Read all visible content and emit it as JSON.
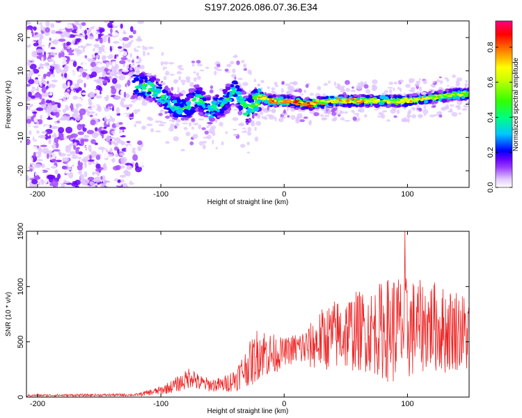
{
  "title": "S197.2026.086.07.36.E34",
  "chart_data": [
    {
      "type": "heatmap",
      "xlabel": "Height of straight line (km)",
      "ylabel": "Frequency (Hz)",
      "xlim": [
        -209,
        150
      ],
      "ylim": [
        -25,
        25
      ],
      "xticks": [
        -200,
        -100,
        0,
        100
      ],
      "xtick_labels": [
        "-200",
        "-100",
        "0",
        "100"
      ],
      "yticks": [
        20,
        10,
        0,
        -10,
        -20
      ],
      "ytick_labels": [
        "20",
        "10",
        "0",
        "-10",
        "-20"
      ],
      "colorbar": {
        "label": "Normalized spectral amplitude",
        "range": [
          0,
          0.95
        ],
        "ticks": [
          0,
          0.2,
          0.4,
          0.6,
          0.8
        ],
        "tick_labels": [
          "0.0",
          "0.2",
          "0.4",
          "0.6",
          "0.8"
        ],
        "colors": [
          "#ffffff",
          "#e0c8ff",
          "#9b3cff",
          "#6600ff",
          "#0000ff",
          "#00c8ff",
          "#00ff80",
          "#80ff00",
          "#ffff00",
          "#ff8000",
          "#ff0000",
          "#ff0080"
        ]
      },
      "ridge": {
        "x": [
          -120,
          -110,
          -100,
          -90,
          -80,
          -70,
          -60,
          -50,
          -40,
          -30,
          -20,
          -10,
          0,
          20,
          40,
          60,
          80,
          100,
          120,
          140,
          150
        ],
        "y": [
          6,
          5,
          3,
          -1,
          -1,
          2,
          -2,
          0,
          4,
          -2,
          2,
          1,
          1,
          0,
          1,
          1,
          1,
          1,
          2,
          3,
          3
        ],
        "peak": [
          0.45,
          0.5,
          0.55,
          0.4,
          0.45,
          0.5,
          0.45,
          0.4,
          0.45,
          0.55,
          0.85,
          0.85,
          0.9,
          0.95,
          0.8,
          0.85,
          0.7,
          0.8,
          0.7,
          0.75,
          0.6
        ]
      },
      "noise_region_x": [
        -209,
        -120
      ]
    },
    {
      "type": "line",
      "xlabel": "Height of straight line (km)",
      "ylabel": "SNR (10 * v/v)",
      "xlim": [
        -209,
        150
      ],
      "ylim": [
        0,
        1500
      ],
      "xticks": [
        -200,
        -100,
        0,
        100
      ],
      "xtick_labels": [
        "-200",
        "-100",
        "0",
        "100"
      ],
      "yticks": [
        0,
        500,
        1000,
        1500
      ],
      "ytick_labels": [
        "0",
        "500",
        "1000",
        "1500"
      ],
      "series": [
        {
          "name": "SNR",
          "color": "#ee2222",
          "envelope_x": [
            -209,
            -120,
            -100,
            -90,
            -80,
            -75,
            -70,
            -60,
            -50,
            -40,
            -30,
            -25,
            -20,
            -10,
            0,
            10,
            20,
            30,
            40,
            50,
            60,
            70,
            80,
            90,
            100,
            110,
            120,
            130,
            140,
            150
          ],
          "envelope_mean": [
            15,
            20,
            60,
            100,
            150,
            200,
            130,
            110,
            110,
            160,
            280,
            330,
            420,
            380,
            410,
            440,
            450,
            520,
            560,
            580,
            600,
            600,
            610,
            620,
            610,
            640,
            650,
            600,
            620,
            550
          ],
          "envelope_spread": [
            10,
            12,
            40,
            60,
            90,
            110,
            80,
            60,
            70,
            110,
            180,
            230,
            250,
            200,
            120,
            150,
            200,
            280,
            320,
            350,
            370,
            380,
            450,
            520,
            480,
            420,
            420,
            400,
            380,
            360
          ],
          "max_value": 1500,
          "max_value_x": 98
        }
      ]
    }
  ]
}
